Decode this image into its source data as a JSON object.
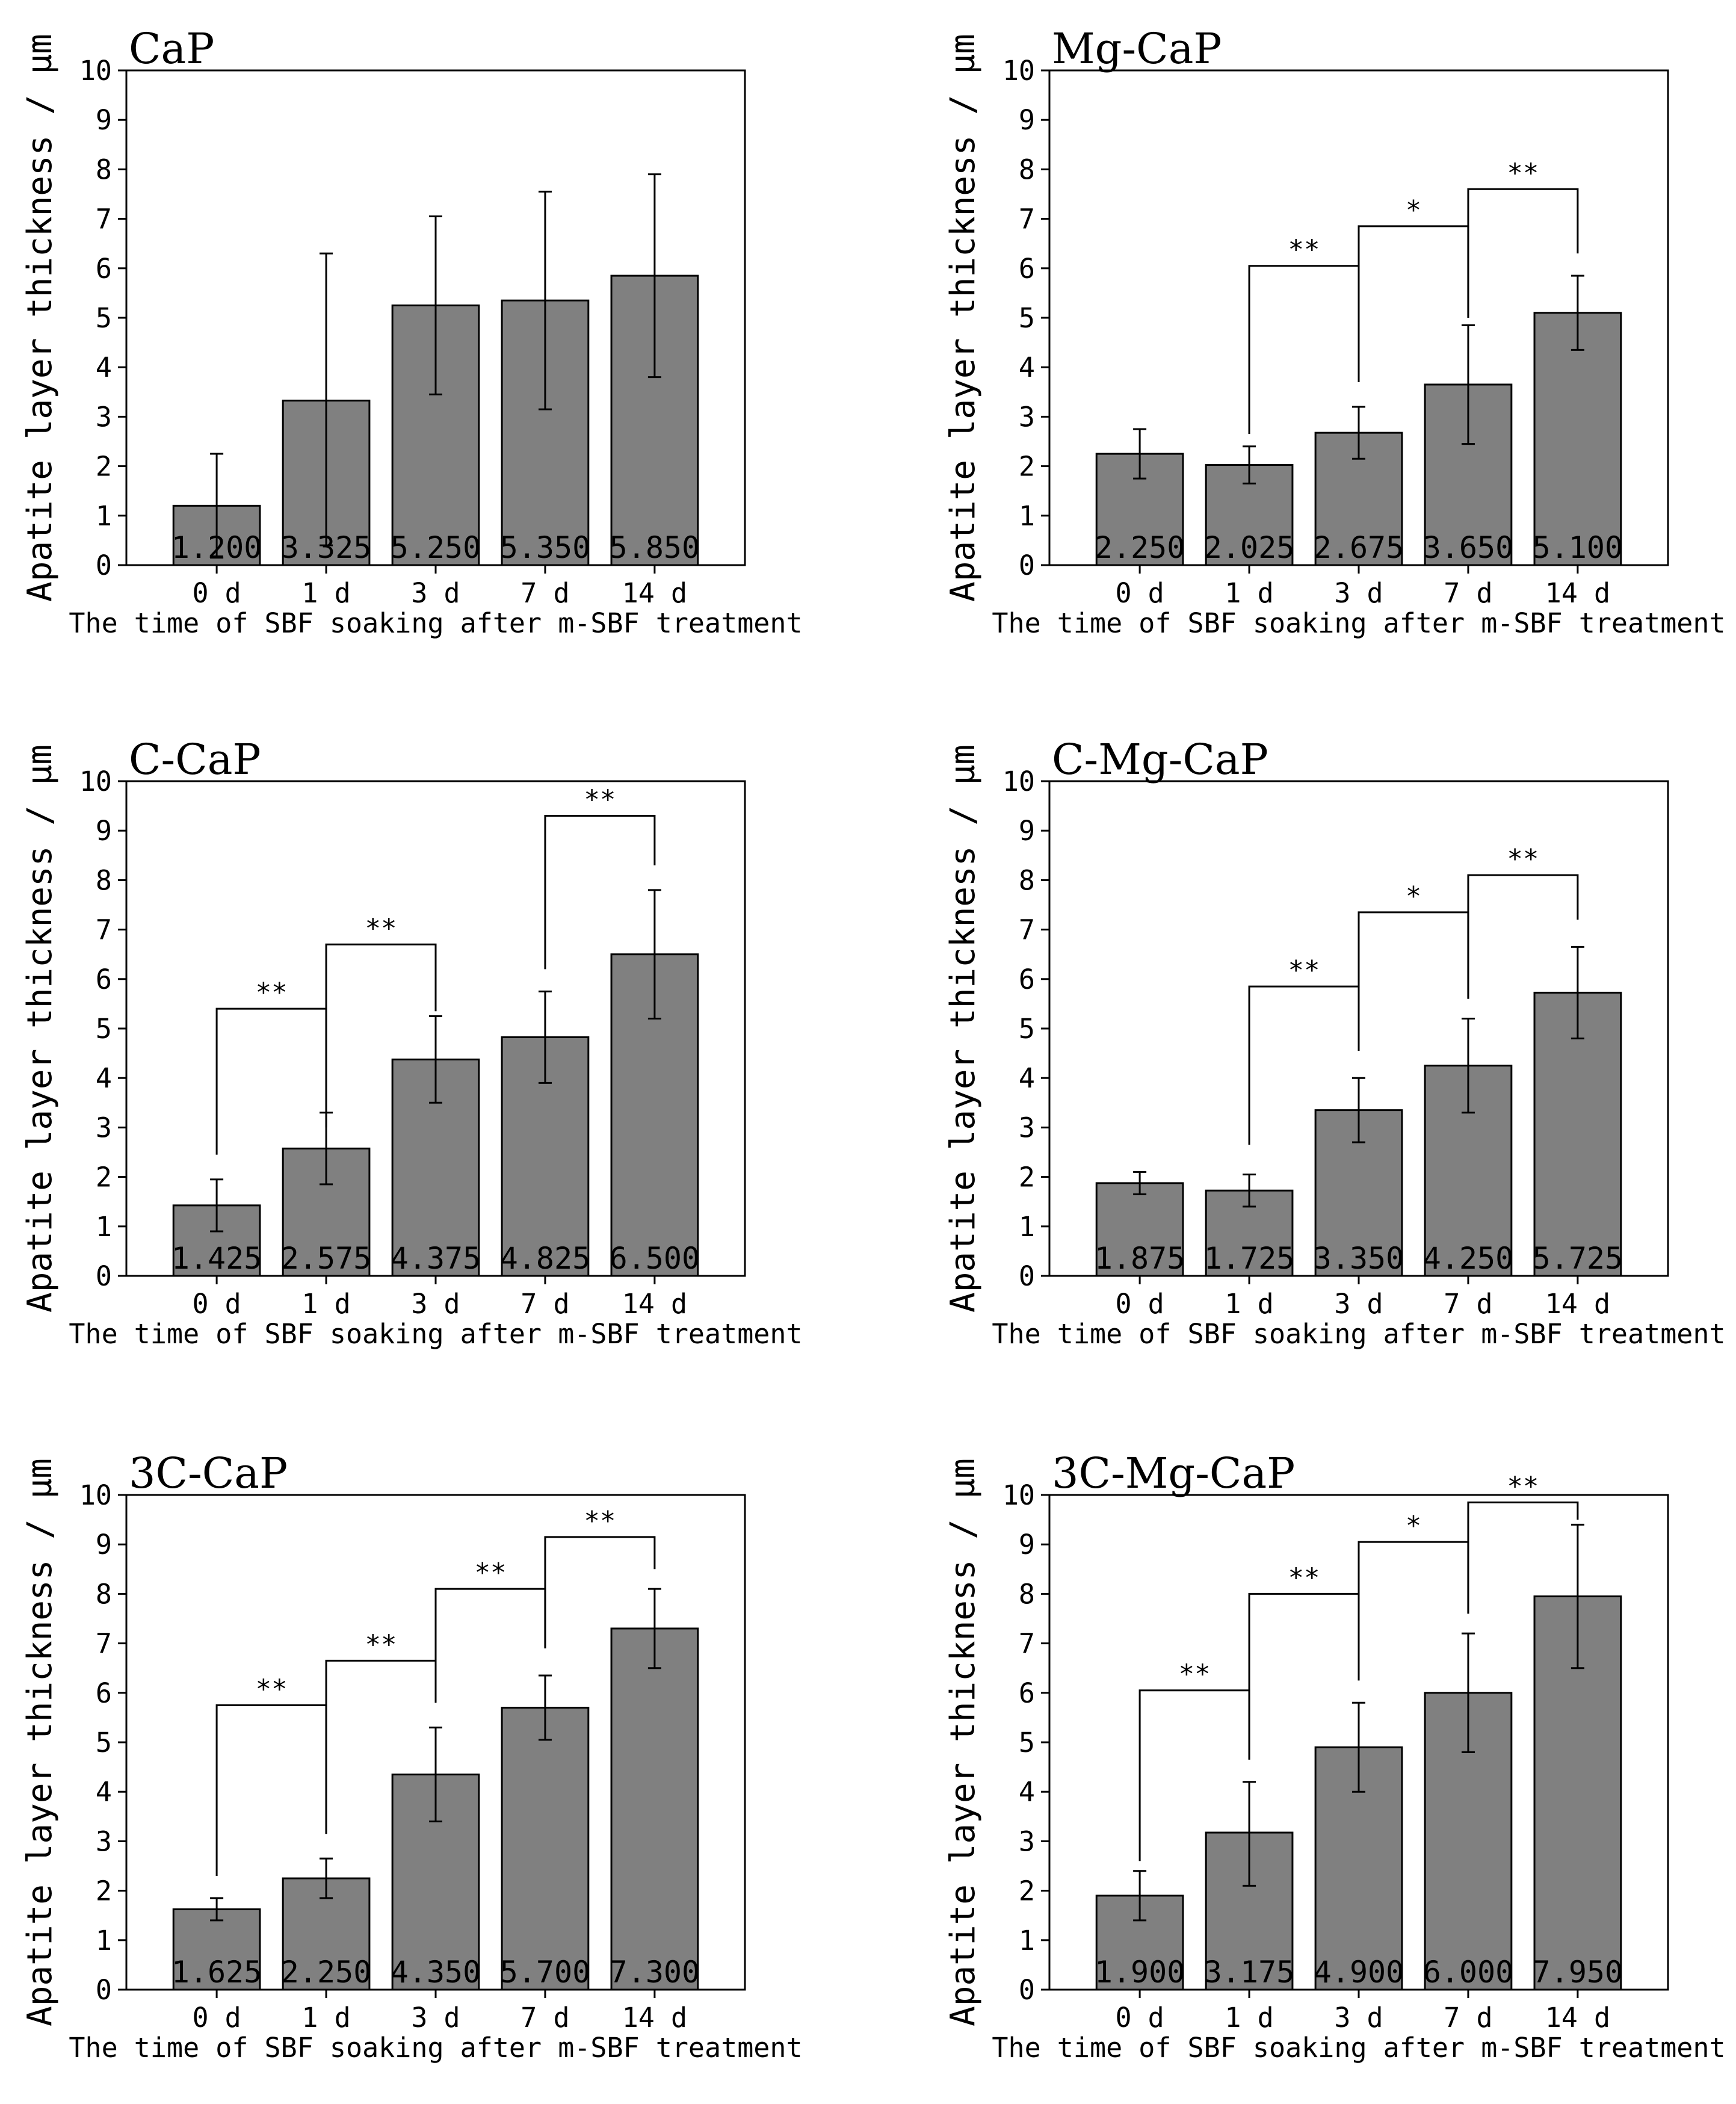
{
  "chart_data": [
    {
      "type": "bar",
      "title": "CaP",
      "categories": [
        "0 d",
        "1 d",
        "3 d",
        "7 d",
        "14 d"
      ],
      "values": [
        1.2,
        3.325,
        5.25,
        5.35,
        5.85
      ],
      "value_labels": [
        "1.200",
        "3.325",
        "5.250",
        "5.350",
        "5.850"
      ],
      "error_low": [
        0.15,
        0.4,
        3.45,
        3.15,
        3.8
      ],
      "error_high": [
        2.25,
        6.3,
        7.05,
        7.55,
        7.9
      ],
      "significance": [],
      "xlabel": "The time of SBF soaking after m-SBF treatment",
      "ylabel": "Apatite layer thickness / μm",
      "ylim": [
        0,
        10
      ],
      "yticks": [
        0,
        1,
        2,
        3,
        4,
        5,
        6,
        7,
        8,
        9,
        10
      ],
      "bar_color": "#808080"
    },
    {
      "type": "bar",
      "title": "Mg-CaP",
      "categories": [
        "0 d",
        "1 d",
        "3 d",
        "7 d",
        "14 d"
      ],
      "values": [
        2.25,
        2.025,
        2.675,
        3.65,
        5.1
      ],
      "value_labels": [
        "2.250",
        "2.025",
        "2.675",
        "3.650",
        "5.100"
      ],
      "error_low": [
        1.75,
        1.65,
        2.15,
        2.45,
        4.35
      ],
      "error_high": [
        2.75,
        2.4,
        3.2,
        4.85,
        5.85
      ],
      "significance": [
        {
          "from": 1,
          "to": 2,
          "y": 6.05,
          "drop_from": 2.65,
          "drop_to": 3.7,
          "label": "**"
        },
        {
          "from": 2,
          "to": 3,
          "y": 6.85,
          "drop_from": 3.7,
          "drop_to": 5.0,
          "label": "*"
        },
        {
          "from": 3,
          "to": 4,
          "y": 7.6,
          "drop_from": 5.0,
          "drop_to": 6.3,
          "label": "**"
        }
      ],
      "xlabel": "The time of SBF soaking after m-SBF treatment",
      "ylabel": "Apatite layer thickness / μm",
      "ylim": [
        0,
        10
      ],
      "yticks": [
        0,
        1,
        2,
        3,
        4,
        5,
        6,
        7,
        8,
        9,
        10
      ],
      "bar_color": "#808080"
    },
    {
      "type": "bar",
      "title": "C-CaP",
      "categories": [
        "0 d",
        "1 d",
        "3 d",
        "7 d",
        "14 d"
      ],
      "values": [
        1.425,
        2.575,
        4.375,
        4.825,
        6.5
      ],
      "value_labels": [
        "1.425",
        "2.575",
        "4.375",
        "4.825",
        "6.500"
      ],
      "error_low": [
        0.9,
        1.85,
        3.5,
        3.9,
        5.2
      ],
      "error_high": [
        1.95,
        3.3,
        5.25,
        5.75,
        7.8
      ],
      "significance": [
        {
          "from": 0,
          "to": 1,
          "y": 5.4,
          "drop_from": 2.45,
          "drop_to": 3.0,
          "label": "**"
        },
        {
          "from": 1,
          "to": 2,
          "y": 6.7,
          "drop_from": 3.0,
          "drop_to": 5.35,
          "label": "**"
        },
        {
          "from": 3,
          "to": 4,
          "y": 9.3,
          "drop_from": 6.2,
          "drop_to": 8.3,
          "label": "**"
        }
      ],
      "xlabel": "The time of SBF soaking after m-SBF treatment",
      "ylabel": "Apatite layer thickness / μm",
      "ylim": [
        0,
        10
      ],
      "yticks": [
        0,
        1,
        2,
        3,
        4,
        5,
        6,
        7,
        8,
        9,
        10
      ],
      "bar_color": "#808080"
    },
    {
      "type": "bar",
      "title": "C-Mg-CaP",
      "categories": [
        "0 d",
        "1 d",
        "3 d",
        "7 d",
        "14 d"
      ],
      "values": [
        1.875,
        1.725,
        3.35,
        4.25,
        5.725
      ],
      "value_labels": [
        "1.875",
        "1.725",
        "3.350",
        "4.250",
        "5.725"
      ],
      "error_low": [
        1.65,
        1.4,
        2.7,
        3.3,
        4.8
      ],
      "error_high": [
        2.1,
        2.05,
        4.0,
        5.2,
        6.65
      ],
      "significance": [
        {
          "from": 1,
          "to": 2,
          "y": 5.85,
          "drop_from": 2.65,
          "drop_to": 4.55,
          "label": "**"
        },
        {
          "from": 2,
          "to": 3,
          "y": 7.35,
          "drop_from": 4.55,
          "drop_to": 5.6,
          "label": "*"
        },
        {
          "from": 3,
          "to": 4,
          "y": 8.1,
          "drop_from": 5.6,
          "drop_to": 7.2,
          "label": "**"
        }
      ],
      "xlabel": "The time of SBF soaking after m-SBF treatment",
      "ylabel": "Apatite layer thickness / μm",
      "ylim": [
        0,
        10
      ],
      "yticks": [
        0,
        1,
        2,
        3,
        4,
        5,
        6,
        7,
        8,
        9,
        10
      ],
      "bar_color": "#808080"
    },
    {
      "type": "bar",
      "title": "3C-CaP",
      "categories": [
        "0 d",
        "1 d",
        "3 d",
        "7 d",
        "14 d"
      ],
      "values": [
        1.625,
        2.25,
        4.35,
        5.7,
        7.3
      ],
      "value_labels": [
        "1.625",
        "2.250",
        "4.350",
        "5.700",
        "7.300"
      ],
      "error_low": [
        1.4,
        1.85,
        3.4,
        5.05,
        6.5
      ],
      "error_high": [
        1.85,
        2.65,
        5.3,
        6.35,
        8.1
      ],
      "significance": [
        {
          "from": 0,
          "to": 1,
          "y": 5.75,
          "drop_from": 2.3,
          "drop_to": 3.15,
          "label": "**"
        },
        {
          "from": 1,
          "to": 2,
          "y": 6.65,
          "drop_from": 3.15,
          "drop_to": 5.8,
          "label": "**"
        },
        {
          "from": 2,
          "to": 3,
          "y": 8.1,
          "drop_from": 5.8,
          "drop_to": 6.9,
          "label": "**"
        },
        {
          "from": 3,
          "to": 4,
          "y": 9.15,
          "drop_from": 6.9,
          "drop_to": 8.5,
          "label": "**"
        }
      ],
      "xlabel": "The time of SBF soaking after m-SBF treatment",
      "ylabel": "Apatite layer thickness / μm",
      "ylim": [
        0,
        10
      ],
      "yticks": [
        0,
        1,
        2,
        3,
        4,
        5,
        6,
        7,
        8,
        9,
        10
      ],
      "bar_color": "#808080"
    },
    {
      "type": "bar",
      "title": "3C-Mg-CaP",
      "categories": [
        "0 d",
        "1 d",
        "3 d",
        "7 d",
        "14 d"
      ],
      "values": [
        1.9,
        3.175,
        4.9,
        6.0,
        7.95
      ],
      "value_labels": [
        "1.900",
        "3.175",
        "4.900",
        "6.000",
        "7.950"
      ],
      "error_low": [
        1.4,
        2.1,
        4.0,
        4.8,
        6.5
      ],
      "error_high": [
        2.4,
        4.2,
        5.8,
        7.2,
        9.4
      ],
      "significance": [
        {
          "from": 0,
          "to": 1,
          "y": 6.05,
          "drop_from": 2.6,
          "drop_to": 4.65,
          "label": "**"
        },
        {
          "from": 1,
          "to": 2,
          "y": 8.0,
          "drop_from": 4.65,
          "drop_to": 6.25,
          "label": "**"
        },
        {
          "from": 2,
          "to": 3,
          "y": 9.05,
          "drop_from": 6.25,
          "drop_to": 7.6,
          "label": "*"
        },
        {
          "from": 3,
          "to": 4,
          "y": 9.85,
          "drop_from": 7.6,
          "drop_to": 9.5,
          "label": "**"
        }
      ],
      "xlabel": "The time of SBF soaking after m-SBF treatment",
      "ylabel": "Apatite layer thickness / μm",
      "ylim": [
        0,
        10
      ],
      "yticks": [
        0,
        1,
        2,
        3,
        4,
        5,
        6,
        7,
        8,
        9,
        10
      ],
      "bar_color": "#808080"
    }
  ]
}
